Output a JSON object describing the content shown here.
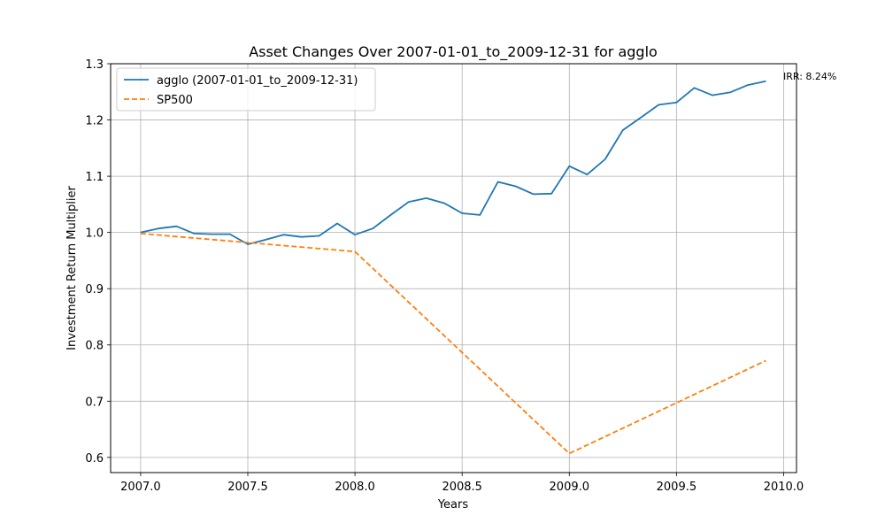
{
  "chart_data": {
    "type": "line",
    "title": "Asset Changes Over 2007-01-01_to_2009-12-31 for agglo",
    "xlabel": "Years",
    "ylabel": "Investment Return Multiplier",
    "xlim": [
      2006.86,
      2010.06
    ],
    "ylim": [
      0.573,
      1.3
    ],
    "xticks": [
      2007.0,
      2007.5,
      2008.0,
      2008.5,
      2009.0,
      2009.5,
      2010.0
    ],
    "xtick_labels": [
      "2007.0",
      "2007.5",
      "2008.0",
      "2008.5",
      "2009.0",
      "2009.5",
      "2010.0"
    ],
    "yticks": [
      0.6,
      0.7,
      0.8,
      0.9,
      1.0,
      1.1,
      1.2,
      1.3
    ],
    "ytick_labels": [
      "0.6",
      "0.7",
      "0.8",
      "0.9",
      "1.0",
      "1.1",
      "1.2",
      "1.3"
    ],
    "grid": true,
    "legend_position": "top-left",
    "annotation": "IRR: 8.24%",
    "series": [
      {
        "name": "agglo (2007-01-01_to_2009-12-31)",
        "color": "#1f77b4",
        "style": "solid",
        "x": [
          2007.0,
          2007.083,
          2007.167,
          2007.25,
          2007.333,
          2007.417,
          2007.5,
          2007.583,
          2007.667,
          2007.75,
          2007.833,
          2007.917,
          2008.0,
          2008.083,
          2008.167,
          2008.25,
          2008.333,
          2008.417,
          2008.5,
          2008.583,
          2008.667,
          2008.75,
          2008.833,
          2008.917,
          2009.0,
          2009.083,
          2009.167,
          2009.25,
          2009.333,
          2009.417,
          2009.5,
          2009.583,
          2009.667,
          2009.75,
          2009.833,
          2009.917
        ],
        "values": [
          1.0,
          1.007,
          1.011,
          0.998,
          0.997,
          0.997,
          0.979,
          0.987,
          0.996,
          0.992,
          0.994,
          1.016,
          0.996,
          1.007,
          1.031,
          1.054,
          1.061,
          1.052,
          1.034,
          1.031,
          1.09,
          1.082,
          1.068,
          1.069,
          1.118,
          1.103,
          1.13,
          1.182,
          1.204,
          1.227,
          1.231,
          1.257,
          1.244,
          1.249,
          1.262,
          1.269
        ]
      },
      {
        "name": "SP500",
        "color": "#ff7f0e",
        "style": "dashed",
        "x": [
          2007.0,
          2008.0,
          2009.0,
          2009.917
        ],
        "values": [
          0.998,
          0.966,
          0.607,
          0.772
        ]
      }
    ]
  }
}
